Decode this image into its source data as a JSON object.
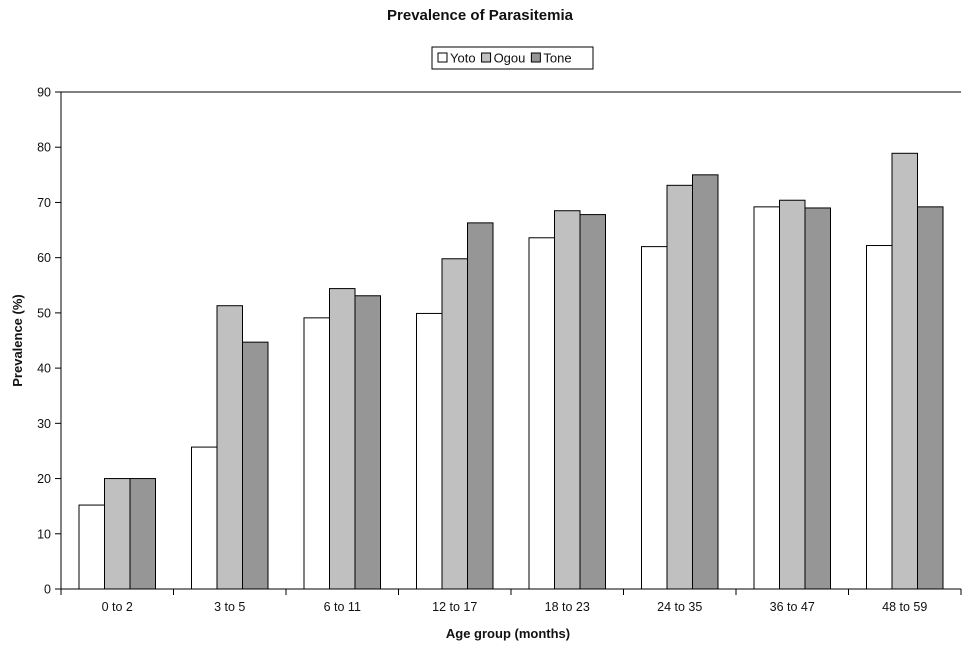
{
  "chart_data": {
    "type": "bar",
    "title": "Prevalence of Parasitemia",
    "xlabel": "Age group (months)",
    "ylabel": "Prevalence (%)",
    "ylim": [
      0,
      90
    ],
    "yticks": [
      0,
      10,
      20,
      30,
      40,
      50,
      60,
      70,
      80,
      90
    ],
    "grid": false,
    "legend_position": "top-center",
    "categories": [
      "0 to 2",
      "3 to 5",
      "6 to 11",
      "12 to 17",
      "18 to 23",
      "24 to 35",
      "36 to 47",
      "48 to 59"
    ],
    "series": [
      {
        "name": "Yoto",
        "color": "#ffffff",
        "values": [
          15.2,
          25.7,
          49.1,
          49.9,
          63.6,
          62.0,
          69.2,
          62.2
        ]
      },
      {
        "name": "Ogou",
        "color": "#c0c0c0",
        "values": [
          20.0,
          51.3,
          54.4,
          59.8,
          68.5,
          73.1,
          70.4,
          78.9
        ]
      },
      {
        "name": "Tone",
        "color": "#969696",
        "values": [
          20.0,
          44.7,
          53.1,
          66.3,
          67.8,
          75.0,
          69.0,
          69.2
        ]
      }
    ]
  }
}
